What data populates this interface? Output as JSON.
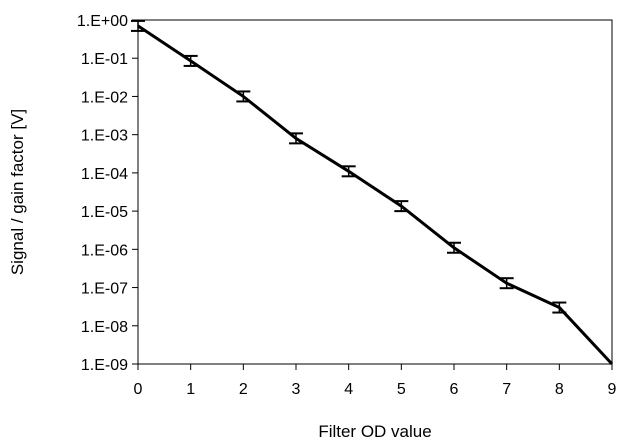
{
  "chart_data": {
    "type": "line",
    "title": "",
    "xlabel": "Filter OD value",
    "ylabel": "Signal / gain factor [V]",
    "x_scale": "linear",
    "y_scale": "log",
    "xlim": [
      0,
      9
    ],
    "ylim": [
      1e-09,
      1
    ],
    "x_ticks": [
      0,
      1,
      2,
      3,
      4,
      5,
      6,
      7,
      8,
      9
    ],
    "x_tick_labels": [
      "0",
      "1",
      "2",
      "3",
      "4",
      "5",
      "6",
      "7",
      "8",
      "9"
    ],
    "y_ticks": [
      1,
      0.1,
      0.01,
      0.001,
      0.0001,
      1e-05,
      1e-06,
      1e-07,
      1e-08,
      1e-09
    ],
    "y_tick_labels": [
      "1.E+00",
      "1.E-01",
      "1.E-02",
      "1.E-03",
      "1.E-04",
      "1.E-05",
      "1.E-06",
      "1.E-07",
      "1.E-08",
      "1.E-09"
    ],
    "grid": false,
    "legend": "none",
    "series": [
      {
        "x": [
          0,
          1,
          2,
          3,
          4,
          5,
          6,
          7,
          8,
          9
        ],
        "y": [
          0.7,
          0.085,
          0.01,
          0.0008,
          0.00011,
          1.35e-05,
          1.1e-06,
          1.3e-07,
          3e-08,
          1e-09
        ],
        "error_bar": [
          true,
          true,
          true,
          true,
          true,
          true,
          true,
          true,
          true,
          false
        ],
        "color": "#000000"
      }
    ]
  }
}
